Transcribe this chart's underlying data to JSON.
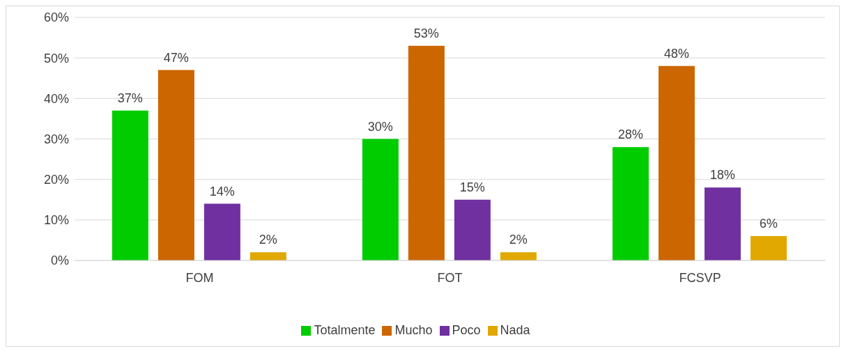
{
  "chart_data": {
    "type": "bar",
    "categories": [
      "FOM",
      "FOT",
      "FCSVP"
    ],
    "series": [
      {
        "name": "Totalmente",
        "color": "#00cc00",
        "values": [
          37,
          30,
          28
        ],
        "value_labels": [
          "37%",
          "30%",
          "28%"
        ]
      },
      {
        "name": "Mucho",
        "color": "#cc6600",
        "values": [
          47,
          53,
          48
        ],
        "value_labels": [
          "47%",
          "53%",
          "48%"
        ]
      },
      {
        "name": "Poco",
        "color": "#7030a0",
        "values": [
          14,
          15,
          18
        ],
        "value_labels": [
          "14%",
          "15%",
          "18%"
        ]
      },
      {
        "name": "Nada",
        "color": "#e0a800",
        "values": [
          2,
          2,
          6
        ],
        "value_labels": [
          "2%",
          "2%",
          "6%"
        ]
      }
    ],
    "ylim": [
      0,
      60
    ],
    "yticks": [
      {
        "value": 0,
        "label": "0%"
      },
      {
        "value": 10,
        "label": "10%"
      },
      {
        "value": 20,
        "label": "20%"
      },
      {
        "value": 30,
        "label": "30%"
      },
      {
        "value": 40,
        "label": "40%"
      },
      {
        "value": 50,
        "label": "50%"
      },
      {
        "value": 60,
        "label": "60%"
      }
    ],
    "grid": "y",
    "legend": "bottom"
  }
}
